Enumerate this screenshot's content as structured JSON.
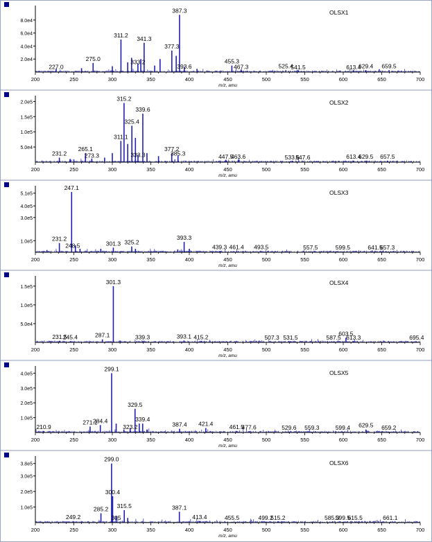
{
  "colors": {
    "trace": "#1f1fb4",
    "marker": "#00008b",
    "axis": "#000000",
    "text": "#000000"
  },
  "axis": {
    "xlabel": "m/z, amu",
    "xlim": [
      200,
      700
    ],
    "xticks": [
      "200",
      "250",
      "300",
      "350",
      "400",
      "450",
      "500",
      "550",
      "600",
      "650",
      "700"
    ]
  },
  "chart_data": [
    {
      "type": "line",
      "title": "OLSX1",
      "ymax": 98000.0,
      "ytick_values": [
        20000.0,
        40000.0,
        60000.0,
        80000.0
      ],
      "ytick_labels": [
        "2.0e4",
        "4.0e4",
        "6.0e4",
        "8.0e4"
      ],
      "peaks": [
        [
          227,
          5000
        ],
        [
          260,
          6000
        ],
        [
          275,
          14000
        ],
        [
          300,
          9000
        ],
        [
          311.2,
          50000
        ],
        [
          320,
          15000
        ],
        [
          325,
          22000
        ],
        [
          333.2,
          13000
        ],
        [
          337,
          20000
        ],
        [
          341.3,
          45000
        ],
        [
          355,
          10000
        ],
        [
          362,
          20000
        ],
        [
          377.3,
          33000
        ],
        [
          383,
          25000
        ],
        [
          387.3,
          88000
        ],
        [
          393.6,
          8000
        ],
        [
          410,
          5000
        ],
        [
          455.3,
          10000
        ],
        [
          467.3,
          4000
        ],
        [
          525.4,
          3000
        ],
        [
          541.5,
          3000
        ],
        [
          613.4,
          3000
        ],
        [
          629.4,
          3000
        ],
        [
          659.5,
          3000
        ]
      ],
      "labels": [
        {
          "x": 227.0,
          "y": 1500,
          "text": "227.0"
        },
        {
          "x": 275.0,
          "y": 14000,
          "text": "275.0"
        },
        {
          "x": 311.2,
          "y": 50000,
          "text": "311.2"
        },
        {
          "x": 341.3,
          "y": 45000,
          "text": "341.3"
        },
        {
          "x": 387.3,
          "y": 88000,
          "text": "387.3"
        },
        {
          "x": 377.3,
          "y": 33000,
          "text": "377.3"
        },
        {
          "x": 333.2,
          "y": 9000,
          "text": "333.2"
        },
        {
          "x": 393.6,
          "y": 2000,
          "text": "393.6"
        },
        {
          "x": 455.3,
          "y": 10000,
          "text": "455.3"
        },
        {
          "x": 467.3,
          "y": 1500,
          "text": "467.3"
        },
        {
          "x": 525.4,
          "y": 2500,
          "text": "525.4"
        },
        {
          "x": 541.5,
          "y": 1000,
          "text": "541.5"
        },
        {
          "x": 613.4,
          "y": 1000,
          "text": "613.4"
        },
        {
          "x": 629.4,
          "y": 2500,
          "text": "629.4"
        },
        {
          "x": 659.5,
          "y": 2500,
          "text": "659.5"
        }
      ]
    },
    {
      "type": "line",
      "title": "OLSX2",
      "ymax": 210000.0,
      "ytick_values": [
        50000.0,
        100000.0,
        150000.0,
        200000.0
      ],
      "ytick_labels": [
        "5.0e4",
        "1.0e5",
        "1.5e5",
        "2.0e5"
      ],
      "peaks": [
        [
          231.2,
          15000
        ],
        [
          245,
          10000
        ],
        [
          265.1,
          30000
        ],
        [
          273.3,
          12000
        ],
        [
          290,
          15000
        ],
        [
          300,
          30000
        ],
        [
          311.1,
          70000
        ],
        [
          315.2,
          195000
        ],
        [
          320,
          60000
        ],
        [
          325.4,
          120000
        ],
        [
          330,
          80000
        ],
        [
          333.3,
          25000
        ],
        [
          339.6,
          160000
        ],
        [
          345,
          30000
        ],
        [
          360,
          20000
        ],
        [
          377.2,
          30000
        ],
        [
          385.3,
          22000
        ],
        [
          447.5,
          8000
        ],
        [
          463.6,
          8000
        ],
        [
          533.6,
          5000
        ],
        [
          547.6,
          5000
        ],
        [
          613.4,
          5000
        ],
        [
          629.5,
          5000
        ],
        [
          657.5,
          5000
        ]
      ],
      "labels": [
        {
          "x": 231.2,
          "y": 15000,
          "text": "231.2"
        },
        {
          "x": 265.1,
          "y": 30000,
          "text": "265.1"
        },
        {
          "x": 273.3,
          "y": 8000,
          "text": "273.3"
        },
        {
          "x": 311.1,
          "y": 70000,
          "text": "311.1"
        },
        {
          "x": 315.2,
          "y": 195000,
          "text": "315.2"
        },
        {
          "x": 325.4,
          "y": 120000,
          "text": "325.4"
        },
        {
          "x": 339.6,
          "y": 160000,
          "text": "339.6"
        },
        {
          "x": 333.3,
          "y": 10000,
          "text": "333.3"
        },
        {
          "x": 377.2,
          "y": 30000,
          "text": "377.2"
        },
        {
          "x": 385.3,
          "y": 15000,
          "text": "385.3"
        },
        {
          "x": 447.5,
          "y": 4000,
          "text": "447.5"
        },
        {
          "x": 463.6,
          "y": 4000,
          "text": "463.6"
        },
        {
          "x": 533.6,
          "y": 2000,
          "text": "533.6"
        },
        {
          "x": 547.6,
          "y": 2000,
          "text": "547.6"
        },
        {
          "x": 613.4,
          "y": 4000,
          "text": "613.4"
        },
        {
          "x": 629.5,
          "y": 4000,
          "text": "629.5"
        },
        {
          "x": 657.5,
          "y": 4000,
          "text": "657.5"
        }
      ]
    },
    {
      "type": "line",
      "title": "OLSX3",
      "ymax": 550000.0,
      "ytick_values": [
        100000.0,
        300000.0,
        400000.0,
        510000.0
      ],
      "ytick_labels": [
        "1.0e5",
        "3.0e5",
        "4.0e5",
        "5.1e5"
      ],
      "peaks": [
        [
          215,
          20000
        ],
        [
          231.2,
          80000
        ],
        [
          247.1,
          520000
        ],
        [
          252,
          60000
        ],
        [
          258,
          30000
        ],
        [
          285,
          30000
        ],
        [
          301.3,
          40000
        ],
        [
          325.2,
          50000
        ],
        [
          330,
          30000
        ],
        [
          385,
          25000
        ],
        [
          393.3,
          90000
        ],
        [
          400,
          30000
        ],
        [
          439.3,
          10000
        ],
        [
          461.4,
          8000
        ],
        [
          493.5,
          8000
        ],
        [
          557.5,
          5000
        ],
        [
          599.5,
          5000
        ],
        [
          641.5,
          5000
        ],
        [
          657.3,
          5000
        ]
      ],
      "labels": [
        {
          "x": 231.2,
          "y": 80000,
          "text": "231.2"
        },
        {
          "x": 247.1,
          "y": 520000,
          "text": "247.1"
        },
        {
          "x": 248.5,
          "y": 20000,
          "text": "248.5"
        },
        {
          "x": 301.3,
          "y": 40000,
          "text": "301.3"
        },
        {
          "x": 325.2,
          "y": 50000,
          "text": "325.2"
        },
        {
          "x": 393.3,
          "y": 90000,
          "text": "393.3"
        },
        {
          "x": 439.3,
          "y": 10000,
          "text": "439.3"
        },
        {
          "x": 461.4,
          "y": 8000,
          "text": "461.4"
        },
        {
          "x": 493.5,
          "y": 8000,
          "text": "493.5"
        },
        {
          "x": 557.5,
          "y": 5000,
          "text": "557.5"
        },
        {
          "x": 599.5,
          "y": 5000,
          "text": "599.5"
        },
        {
          "x": 641.5,
          "y": 5000,
          "text": "641.5"
        },
        {
          "x": 657.3,
          "y": 5000,
          "text": "657.3"
        }
      ]
    },
    {
      "type": "line",
      "title": "OLSX4",
      "ymax": 170000.0,
      "ytick_values": [
        50000.0,
        100000.0,
        150000.0
      ],
      "ytick_labels": [
        "5.0e4",
        "1.0e5",
        "1.5e5"
      ],
      "peaks": [
        [
          231.5,
          4000
        ],
        [
          245.4,
          3000
        ],
        [
          287.1,
          8000
        ],
        [
          301.3,
          150000
        ],
        [
          310,
          5000
        ],
        [
          339.3,
          3000
        ],
        [
          393.1,
          5000
        ],
        [
          415.2,
          3000
        ],
        [
          507.3,
          2000
        ],
        [
          531.5,
          2000
        ],
        [
          587.5,
          2000
        ],
        [
          603.5,
          12000
        ],
        [
          613.3,
          2000
        ],
        [
          695.4,
          2000
        ]
      ],
      "labels": [
        {
          "x": 231.5,
          "y": 4000,
          "text": "231.5"
        },
        {
          "x": 245.4,
          "y": 3000,
          "text": "245.4"
        },
        {
          "x": 287.1,
          "y": 8000,
          "text": "287.1"
        },
        {
          "x": 301.3,
          "y": 150000,
          "text": "301.3"
        },
        {
          "x": 339.3,
          "y": 3000,
          "text": "339.3"
        },
        {
          "x": 393.1,
          "y": 5000,
          "text": "393.1"
        },
        {
          "x": 415.2,
          "y": 3000,
          "text": "415.2"
        },
        {
          "x": 507.3,
          "y": 2000,
          "text": "507.3"
        },
        {
          "x": 531.5,
          "y": 2000,
          "text": "531.5"
        },
        {
          "x": 587.5,
          "y": 2000,
          "text": "587.5"
        },
        {
          "x": 603.5,
          "y": 12000,
          "text": "603.5"
        },
        {
          "x": 613.3,
          "y": 2000,
          "text": "613.3"
        },
        {
          "x": 695.4,
          "y": 2000,
          "text": "695.4"
        }
      ]
    },
    {
      "type": "line",
      "title": "OLSX5",
      "ymax": 430000.0,
      "ytick_values": [
        100000.0,
        200000.0,
        300000.0,
        400000.0
      ],
      "ytick_labels": [
        "1.0e5",
        "2.0e5",
        "3.0e5",
        "4.0e5"
      ],
      "peaks": [
        [
          210.9,
          10000
        ],
        [
          271.1,
          40000
        ],
        [
          284.4,
          50000
        ],
        [
          299.1,
          400000
        ],
        [
          305,
          60000
        ],
        [
          315,
          20000
        ],
        [
          323.2,
          30000
        ],
        [
          329.5,
          160000
        ],
        [
          335,
          60000
        ],
        [
          339.4,
          60000
        ],
        [
          345,
          20000
        ],
        [
          387.4,
          25000
        ],
        [
          421.4,
          30000
        ],
        [
          461.5,
          10000
        ],
        [
          477.6,
          8000
        ],
        [
          529.6,
          5000
        ],
        [
          559.3,
          5000
        ],
        [
          599.4,
          5000
        ],
        [
          629.5,
          20000
        ],
        [
          659.2,
          5000
        ]
      ],
      "labels": [
        {
          "x": 210.9,
          "y": 10000,
          "text": "210.9"
        },
        {
          "x": 271.1,
          "y": 40000,
          "text": "271.1"
        },
        {
          "x": 284.4,
          "y": 50000,
          "text": "284.4"
        },
        {
          "x": 299.1,
          "y": 400000,
          "text": "299.1"
        },
        {
          "x": 329.5,
          "y": 160000,
          "text": "329.5"
        },
        {
          "x": 323.2,
          "y": 10000,
          "text": "323.2"
        },
        {
          "x": 339.4,
          "y": 60000,
          "text": "339.4"
        },
        {
          "x": 387.4,
          "y": 25000,
          "text": "387.4"
        },
        {
          "x": 421.4,
          "y": 30000,
          "text": "421.4"
        },
        {
          "x": 461.5,
          "y": 10000,
          "text": "461.5"
        },
        {
          "x": 477.6,
          "y": 8000,
          "text": "477.6"
        },
        {
          "x": 529.6,
          "y": 5000,
          "text": "529.6"
        },
        {
          "x": 559.3,
          "y": 5000,
          "text": "559.3"
        },
        {
          "x": 599.4,
          "y": 5000,
          "text": "599.4"
        },
        {
          "x": 629.5,
          "y": 20000,
          "text": "629.5"
        },
        {
          "x": 659.2,
          "y": 5000,
          "text": "659.2"
        }
      ]
    },
    {
      "type": "line",
      "title": "OLSX6",
      "ymax": 410000.0,
      "ytick_values": [
        100000.0,
        200000.0,
        300000.0,
        380000.0
      ],
      "ytick_labels": [
        "1.0e5",
        "2.0e5",
        "3.0e5",
        "3.8e5"
      ],
      "peaks": [
        [
          249.2,
          10000
        ],
        [
          285.2,
          60000
        ],
        [
          299,
          380000
        ],
        [
          300.4,
          170000
        ],
        [
          305,
          40000
        ],
        [
          315.5,
          80000
        ],
        [
          320,
          30000
        ],
        [
          387.1,
          70000
        ],
        [
          413.4,
          10000
        ],
        [
          455.5,
          5000
        ],
        [
          499.2,
          5000
        ],
        [
          515.2,
          5000
        ],
        [
          585.3,
          5000
        ],
        [
          599.5,
          5000
        ],
        [
          615.5,
          5000
        ],
        [
          661.1,
          5000
        ]
      ],
      "labels": [
        {
          "x": 249.2,
          "y": 10000,
          "text": "249.2"
        },
        {
          "x": 285.2,
          "y": 60000,
          "text": "285.2"
        },
        {
          "x": 299.0,
          "y": 380000,
          "text": "299.0"
        },
        {
          "x": 300.4,
          "y": 170000,
          "text": "300.4"
        },
        {
          "x": 305.0,
          "y": 5000,
          "text": "305"
        },
        {
          "x": 315.5,
          "y": 80000,
          "text": "315.5"
        },
        {
          "x": 387.1,
          "y": 70000,
          "text": "387.1"
        },
        {
          "x": 413.4,
          "y": 10000,
          "text": "413.4"
        },
        {
          "x": 455.5,
          "y": 5000,
          "text": "455.5"
        },
        {
          "x": 499.2,
          "y": 5000,
          "text": "499.2"
        },
        {
          "x": 515.2,
          "y": 5000,
          "text": "515.2"
        },
        {
          "x": 585.3,
          "y": 5000,
          "text": "585.3"
        },
        {
          "x": 599.5,
          "y": 5000,
          "text": "599.5"
        },
        {
          "x": 615.5,
          "y": 5000,
          "text": "615.5"
        },
        {
          "x": 661.1,
          "y": 5000,
          "text": "661.1"
        }
      ]
    }
  ]
}
